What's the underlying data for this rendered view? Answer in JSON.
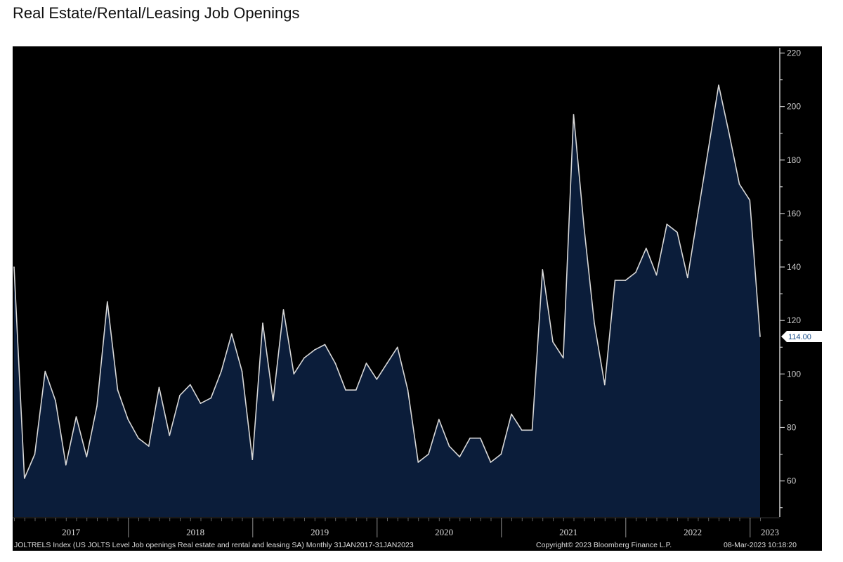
{
  "chart_data": {
    "type": "area",
    "title": "Real Estate/Rental/Leasing Job Openings",
    "xlabel": "",
    "ylabel": "",
    "ylim": [
      46.5,
      222.5
    ],
    "yticks": [
      60,
      80,
      100,
      120,
      140,
      160,
      180,
      200,
      220
    ],
    "year_labels": [
      "2017",
      "2018",
      "2019",
      "2020",
      "2021",
      "2022",
      "2023"
    ],
    "x_start": "Jan 2017",
    "x_end": "Jan 2023",
    "frequency": "monthly",
    "series": [
      {
        "name": "JOLTRELS Index",
        "values": [
          140,
          61,
          70,
          101,
          90,
          66,
          84,
          69,
          88,
          127,
          94,
          83,
          76,
          73,
          95,
          77,
          92,
          96,
          89,
          91,
          101,
          115,
          101,
          68,
          119,
          90,
          124,
          100,
          106,
          109,
          111,
          104,
          94,
          94,
          104,
          98,
          104,
          110,
          94,
          67,
          70,
          83,
          73,
          69,
          76,
          76,
          67,
          70,
          85,
          79,
          79,
          139,
          112,
          106,
          197,
          155,
          119,
          96,
          135,
          135,
          138,
          147,
          137,
          156,
          153,
          136,
          160,
          184,
          208,
          190,
          171,
          165,
          114
        ]
      }
    ],
    "last_value_label": "114.00",
    "last_value": 114,
    "grid": false,
    "colors": {
      "background": "#000000",
      "fill": "#0b1d3a",
      "line": "#d8d8d8",
      "axis": "#cccccc"
    },
    "footer": {
      "source": "JOLTRELS Index (US JOLTS Level Job openings Real estate and rental and leasing SA)  Monthly 31JAN2017-31JAN2023",
      "copyright": "Copyright© 2023 Bloomberg Finance L.P.",
      "timestamp": "08-Mar-2023 10:18:20"
    }
  }
}
